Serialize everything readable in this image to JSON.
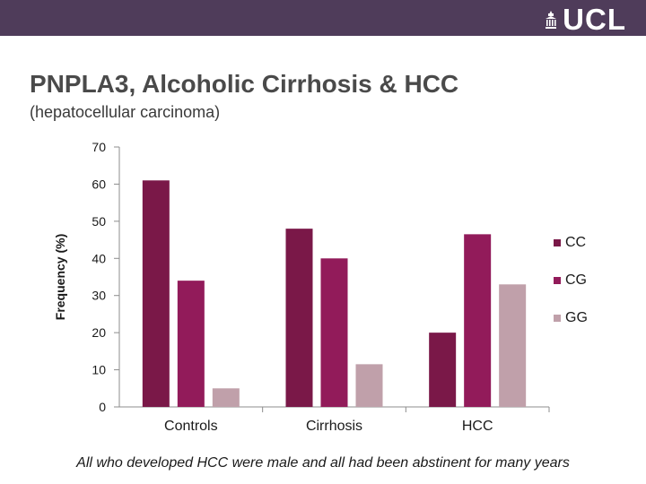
{
  "header": {
    "logo_text": "UCL",
    "bar_color": "#4f3c5a",
    "logo_icon": "ucl-portico-icon"
  },
  "slide": {
    "title": "PNPLA3, Alcoholic Cirrhosis & HCC",
    "subtitle": "(hepatocellular carcinoma)",
    "footnote": "All who developed HCC were male and all had been abstinent for many years"
  },
  "chart_data": {
    "type": "bar",
    "categories": [
      "Controls",
      "Cirrhosis",
      "HCC"
    ],
    "series": [
      {
        "name": "CC",
        "color": "#7a1848",
        "values": [
          61,
          48,
          20
        ]
      },
      {
        "name": "CG",
        "color": "#921b5a",
        "values": [
          34,
          40,
          46.5
        ]
      },
      {
        "name": "GG",
        "color": "#c0a0aa",
        "values": [
          5,
          11.5,
          33
        ]
      }
    ],
    "ylabel": "Frequency (%)",
    "xlabel": "",
    "ylim": [
      0,
      70
    ],
    "yticks": [
      0,
      10,
      20,
      30,
      40,
      50,
      60,
      70
    ],
    "grid": false,
    "legend_position": "right"
  }
}
